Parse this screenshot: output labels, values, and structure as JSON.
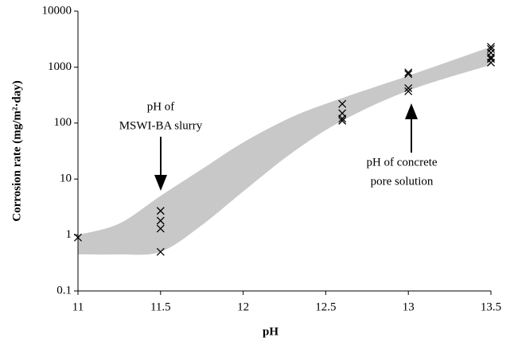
{
  "chart_data": {
    "type": "scatter",
    "xlabel": "pH",
    "ylabel": "Corrosion rate (mg/m²·day)",
    "xlim": [
      11,
      13.5
    ],
    "xticks": [
      11,
      11.5,
      12,
      12.5,
      13,
      13.5
    ],
    "ylim": [
      0.1,
      10000
    ],
    "yticks": [
      0.1,
      1,
      10,
      100,
      1000,
      10000
    ],
    "ylog": true,
    "series": [
      {
        "color": "#000000",
        "x": [
          11,
          11.5,
          11.5,
          11.5,
          11.5,
          12.6,
          12.6,
          12.6,
          12.6,
          13,
          13,
          13,
          13,
          13.5,
          13.5,
          13.5,
          13.5,
          13.5,
          13.5
        ],
        "values": [
          0.9,
          2.7,
          1.8,
          1.3,
          0.5,
          220,
          150,
          120,
          110,
          800,
          750,
          420,
          370,
          2300,
          2100,
          1800,
          1500,
          1400,
          1200
        ]
      }
    ],
    "band": {
      "color": "#c8c8c8",
      "x": [
        11,
        11.25,
        11.5,
        11.75,
        12,
        12.3,
        12.6,
        13,
        13.5
      ],
      "upper": [
        1.0,
        1.6,
        5,
        15,
        45,
        130,
        280,
        700,
        2300
      ],
      "lower": [
        0.45,
        0.45,
        0.5,
        1.5,
        6,
        30,
        110,
        380,
        1100
      ]
    },
    "annotations": [
      {
        "lines": [
          "pH of",
          "MSWI-BA slurry"
        ]
      },
      {
        "lines": [
          "pH of concrete",
          "pore solution"
        ]
      }
    ]
  }
}
